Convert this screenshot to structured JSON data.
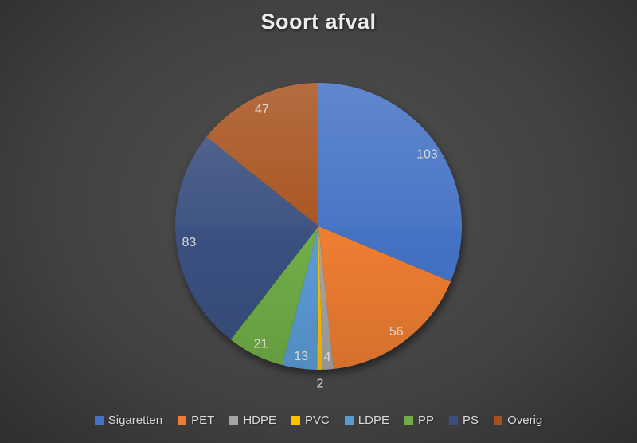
{
  "chart_data": {
    "type": "pie",
    "title": "Soort afval",
    "categories": [
      "Sigaretten",
      "PET",
      "HDPE",
      "PVC",
      "LDPE",
      "PP",
      "PS",
      "Overig"
    ],
    "values": [
      103,
      56,
      4,
      2,
      13,
      21,
      83,
      47
    ],
    "colors": [
      "#4472C4",
      "#ED7D31",
      "#A5A5A5",
      "#FFC000",
      "#5B9BD5",
      "#70AD47",
      "#3B5080",
      "#A7521D"
    ],
    "start_angle_deg": 0,
    "direction": "clockwise",
    "data_labels": "values",
    "label_color": "#D9D9D9",
    "outside_label_categories": [
      "PVC"
    ],
    "legend_position": "bottom",
    "title_color": "#ECECEC",
    "background_center_color": "#515151",
    "background_edge_color": "#272727"
  },
  "legend": {
    "items": [
      {
        "label": "Sigaretten",
        "color": "#4472C4"
      },
      {
        "label": "PET",
        "color": "#ED7D31"
      },
      {
        "label": "HDPE",
        "color": "#A5A5A5"
      },
      {
        "label": "PVC",
        "color": "#FFC000"
      },
      {
        "label": "LDPE",
        "color": "#5B9BD5"
      },
      {
        "label": "PP",
        "color": "#70AD47"
      },
      {
        "label": "PS",
        "color": "#3B5080"
      },
      {
        "label": "Overig",
        "color": "#A7521D"
      }
    ]
  }
}
